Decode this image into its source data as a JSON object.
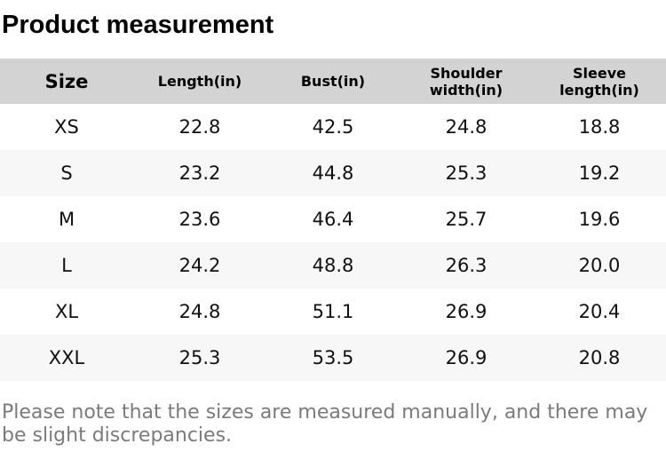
{
  "title": "Product measurement",
  "table": {
    "columns": [
      "Size",
      "Length(in)",
      "Bust(in)",
      "Shoulder\nwidth(in)",
      "Sleeve\nlength(in)"
    ],
    "rows": [
      [
        "XS",
        "22.8",
        "42.5",
        "24.8",
        "18.8"
      ],
      [
        "S",
        "23.2",
        "44.8",
        "25.3",
        "19.2"
      ],
      [
        "M",
        "23.6",
        "46.4",
        "25.7",
        "19.6"
      ],
      [
        "L",
        "24.2",
        "48.8",
        "26.3",
        "20.0"
      ],
      [
        "XL",
        "24.8",
        "51.1",
        "26.9",
        "20.4"
      ],
      [
        "XXL",
        "25.3",
        "53.5",
        "26.9",
        "20.8"
      ]
    ]
  },
  "note": "Please note that the sizes are measured manually, and there may be slight discrepancies.",
  "colors": {
    "header_bg": "#d3d3d3",
    "row_alt_bg": "#f7f7f7",
    "title_text": "#000000",
    "cell_text": "#111111",
    "note_text": "#7b7b7b"
  }
}
